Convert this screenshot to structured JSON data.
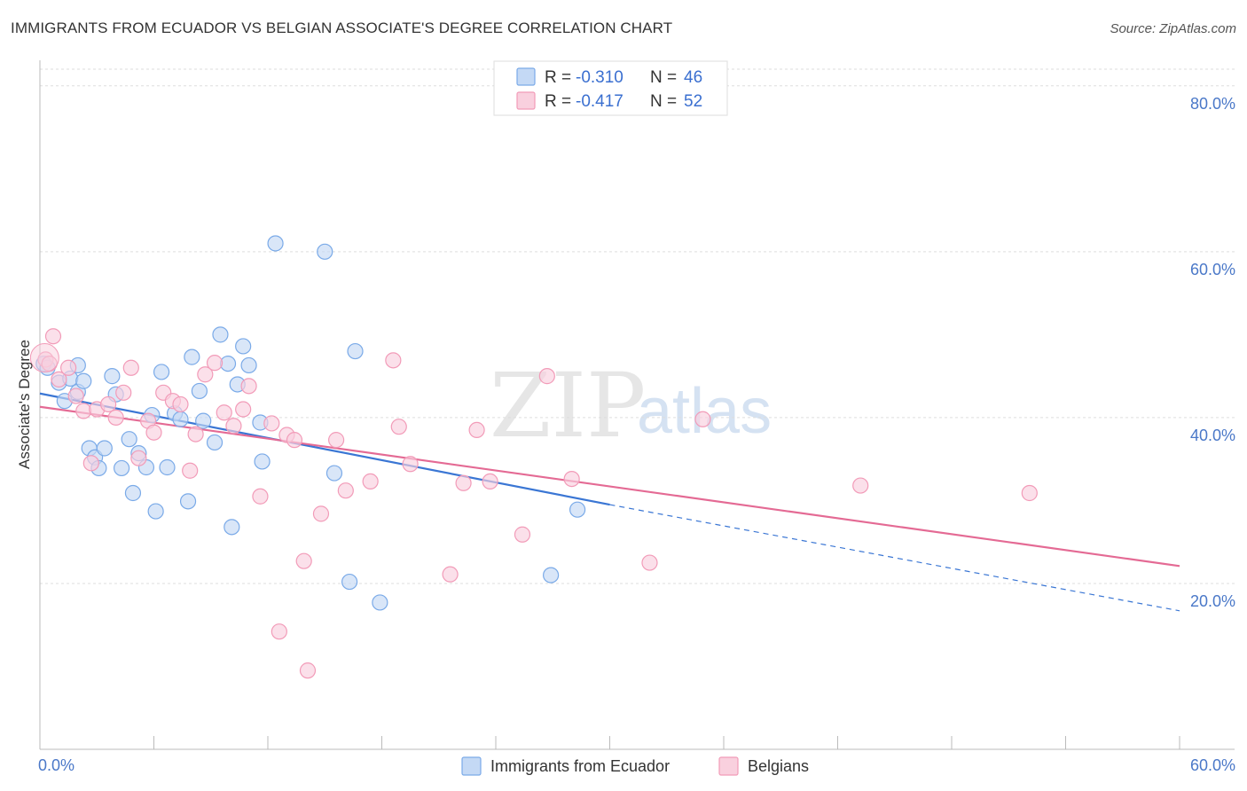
{
  "header": {
    "title": "IMMIGRANTS FROM ECUADOR VS BELGIAN ASSOCIATE'S DEGREE CORRELATION CHART",
    "source": "Source: ZipAtlas.com"
  },
  "watermark": {
    "zip": "ZIP",
    "atlas": "atlas"
  },
  "legend_top": {
    "rows": [
      {
        "r_label": "R =",
        "r_value": "-0.310",
        "n_label": "N =",
        "n_value": "46",
        "color": "#a9c8f0"
      },
      {
        "r_label": "R =",
        "r_value": "-0.417",
        "n_label": "N =",
        "n_value": "52",
        "color": "#f6b8cc"
      }
    ]
  },
  "legend_bottom": {
    "items": [
      {
        "label": "Immigrants from Ecuador",
        "color": "#a9c8f0"
      },
      {
        "label": "Belgians",
        "color": "#f6b8cc"
      }
    ]
  },
  "chart_data": {
    "type": "scatter",
    "title": "IMMIGRANTS FROM ECUADOR VS BELGIAN ASSOCIATE'S DEGREE CORRELATION CHART",
    "xlabel": "",
    "ylabel": "Associate's Degree",
    "xlim": [
      0,
      60
    ],
    "ylim": [
      0,
      85
    ],
    "x_tick_labels": [
      "0.0%",
      "60.0%"
    ],
    "y_ticks": [
      20,
      40,
      60,
      80
    ],
    "y_tick_labels": [
      "20.0%",
      "40.0%",
      "60.0%",
      "80.0%"
    ],
    "grid": true,
    "legend_position": "top-center",
    "series": [
      {
        "name": "Immigrants from Ecuador",
        "color": "#7aaae8",
        "fill": "#c4d9f5",
        "r": -0.31,
        "n": 46,
        "trend": {
          "x0": 0,
          "y0": 42.9,
          "x1": 30.0,
          "y1": 29.5,
          "dash_to_x": 60.0,
          "dash_to_y": 16.7
        },
        "points": [
          [
            0.2,
            46.5
          ],
          [
            0.4,
            46.0
          ],
          [
            1.0,
            44.2
          ],
          [
            1.3,
            42.0
          ],
          [
            1.6,
            44.7
          ],
          [
            2.0,
            43.1
          ],
          [
            2.0,
            46.3
          ],
          [
            2.3,
            44.4
          ],
          [
            2.6,
            36.3
          ],
          [
            2.9,
            35.2
          ],
          [
            3.1,
            33.9
          ],
          [
            3.4,
            36.3
          ],
          [
            3.8,
            45.0
          ],
          [
            4.0,
            42.8
          ],
          [
            4.3,
            33.9
          ],
          [
            4.7,
            37.4
          ],
          [
            4.9,
            30.9
          ],
          [
            5.2,
            35.7
          ],
          [
            5.6,
            34.0
          ],
          [
            5.9,
            40.3
          ],
          [
            6.1,
            28.7
          ],
          [
            6.4,
            45.5
          ],
          [
            6.7,
            34.0
          ],
          [
            7.1,
            40.5
          ],
          [
            7.4,
            39.8
          ],
          [
            7.8,
            29.9
          ],
          [
            8.0,
            47.3
          ],
          [
            8.4,
            43.2
          ],
          [
            8.6,
            39.6
          ],
          [
            9.2,
            37.0
          ],
          [
            9.5,
            50.0
          ],
          [
            9.9,
            46.5
          ],
          [
            10.1,
            26.8
          ],
          [
            10.4,
            44.0
          ],
          [
            10.7,
            48.6
          ],
          [
            11.0,
            46.3
          ],
          [
            11.6,
            39.4
          ],
          [
            11.7,
            34.7
          ],
          [
            12.4,
            61.0
          ],
          [
            15.0,
            60.0
          ],
          [
            15.5,
            33.3
          ],
          [
            16.3,
            20.2
          ],
          [
            16.6,
            48.0
          ],
          [
            17.9,
            17.7
          ],
          [
            26.9,
            21.0
          ],
          [
            28.3,
            28.9
          ]
        ]
      },
      {
        "name": "Belgians",
        "color": "#f29bb8",
        "fill": "#f9d0de",
        "r": -0.417,
        "n": 52,
        "trend": {
          "x0": 0,
          "y0": 41.3,
          "x1": 60.0,
          "y1": 22.1
        },
        "points": [
          [
            0.3,
            47.0
          ],
          [
            0.7,
            49.8
          ],
          [
            1.0,
            44.6
          ],
          [
            1.5,
            46.0
          ],
          [
            1.9,
            42.6
          ],
          [
            2.3,
            40.8
          ],
          [
            2.7,
            34.5
          ],
          [
            3.0,
            41.0
          ],
          [
            3.6,
            41.6
          ],
          [
            4.0,
            40.0
          ],
          [
            4.4,
            43.0
          ],
          [
            4.8,
            46.0
          ],
          [
            5.2,
            35.1
          ],
          [
            5.7,
            39.6
          ],
          [
            6.0,
            38.2
          ],
          [
            6.5,
            43.0
          ],
          [
            7.0,
            42.0
          ],
          [
            7.4,
            41.6
          ],
          [
            7.9,
            33.6
          ],
          [
            8.2,
            38.0
          ],
          [
            8.7,
            45.2
          ],
          [
            9.2,
            46.6
          ],
          [
            9.7,
            40.6
          ],
          [
            10.2,
            39.0
          ],
          [
            10.7,
            41.0
          ],
          [
            11.0,
            43.8
          ],
          [
            11.6,
            30.5
          ],
          [
            12.2,
            39.3
          ],
          [
            12.6,
            14.2
          ],
          [
            13.0,
            37.9
          ],
          [
            13.4,
            37.3
          ],
          [
            13.9,
            22.7
          ],
          [
            14.1,
            9.5
          ],
          [
            14.8,
            28.4
          ],
          [
            15.6,
            37.3
          ],
          [
            16.1,
            31.2
          ],
          [
            17.4,
            32.3
          ],
          [
            18.6,
            46.9
          ],
          [
            18.9,
            38.9
          ],
          [
            19.5,
            34.4
          ],
          [
            21.6,
            21.1
          ],
          [
            22.3,
            32.1
          ],
          [
            23.0,
            38.5
          ],
          [
            23.7,
            32.3
          ],
          [
            25.4,
            25.9
          ],
          [
            26.7,
            45.0
          ],
          [
            28.0,
            32.6
          ],
          [
            32.1,
            22.5
          ],
          [
            34.9,
            39.8
          ],
          [
            43.2,
            31.8
          ],
          [
            52.1,
            30.9
          ],
          [
            0.5,
            46.5
          ]
        ]
      }
    ]
  }
}
